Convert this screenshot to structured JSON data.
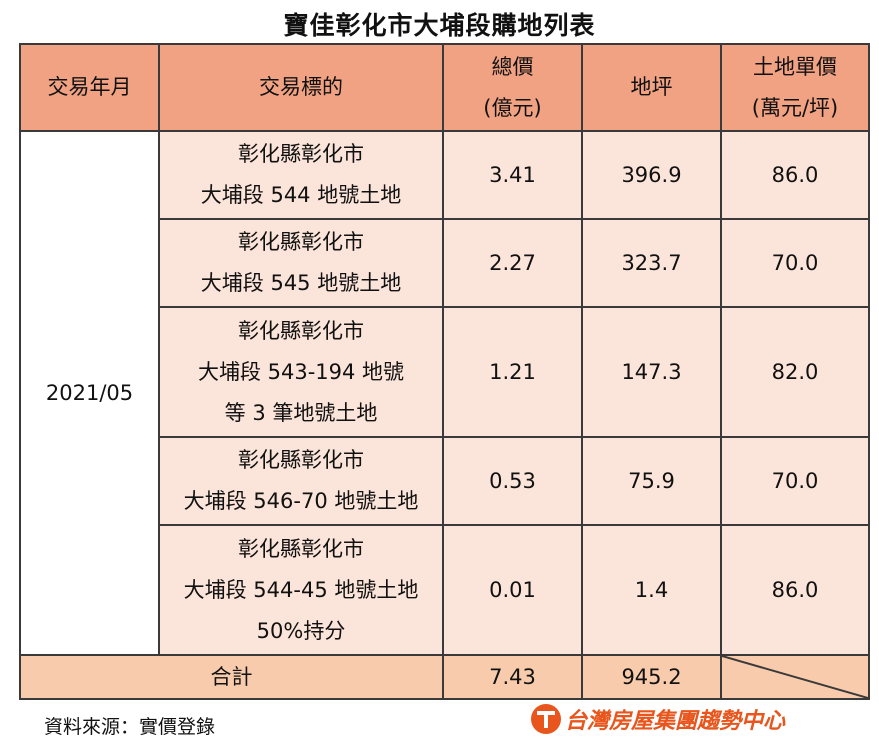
{
  "title": "寶佳彰化市大埔段購地列表",
  "table": {
    "headers": {
      "date": "交易年月",
      "target": "交易標的",
      "price": [
        "總價",
        "(億元)"
      ],
      "area": "地坪",
      "unit_price": [
        "土地單價",
        "(萬元/坪)"
      ]
    },
    "date": "2021/05",
    "rows": [
      {
        "target": [
          "彰化縣彰化市",
          "大埔段 544 地號土地"
        ],
        "price": "3.41",
        "area": "396.9",
        "unit_price": "86.0"
      },
      {
        "target": [
          "彰化縣彰化市",
          "大埔段 545 地號土地"
        ],
        "price": "2.27",
        "area": "323.7",
        "unit_price": "70.0"
      },
      {
        "target": [
          "彰化縣彰化市",
          "大埔段 543-194 地號",
          "等 3 筆地號土地"
        ],
        "price": "1.21",
        "area": "147.3",
        "unit_price": "82.0"
      },
      {
        "target": [
          "彰化縣彰化市",
          "大埔段 546-70 地號土地"
        ],
        "price": "0.53",
        "area": "75.9",
        "unit_price": "70.0"
      },
      {
        "target": [
          "彰化縣彰化市",
          "大埔段 544-45 地號土地",
          "50%持分"
        ],
        "price": "0.01",
        "area": "1.4",
        "unit_price": "86.0"
      }
    ],
    "total": {
      "label": "合計",
      "price": "7.43",
      "area": "945.2"
    }
  },
  "source": "資料來源：實價登錄",
  "logo": {
    "text": "台灣房屋集團趨勢中心",
    "icon": "taiwan-realty-logo-icon",
    "color": "#e8561d"
  }
}
